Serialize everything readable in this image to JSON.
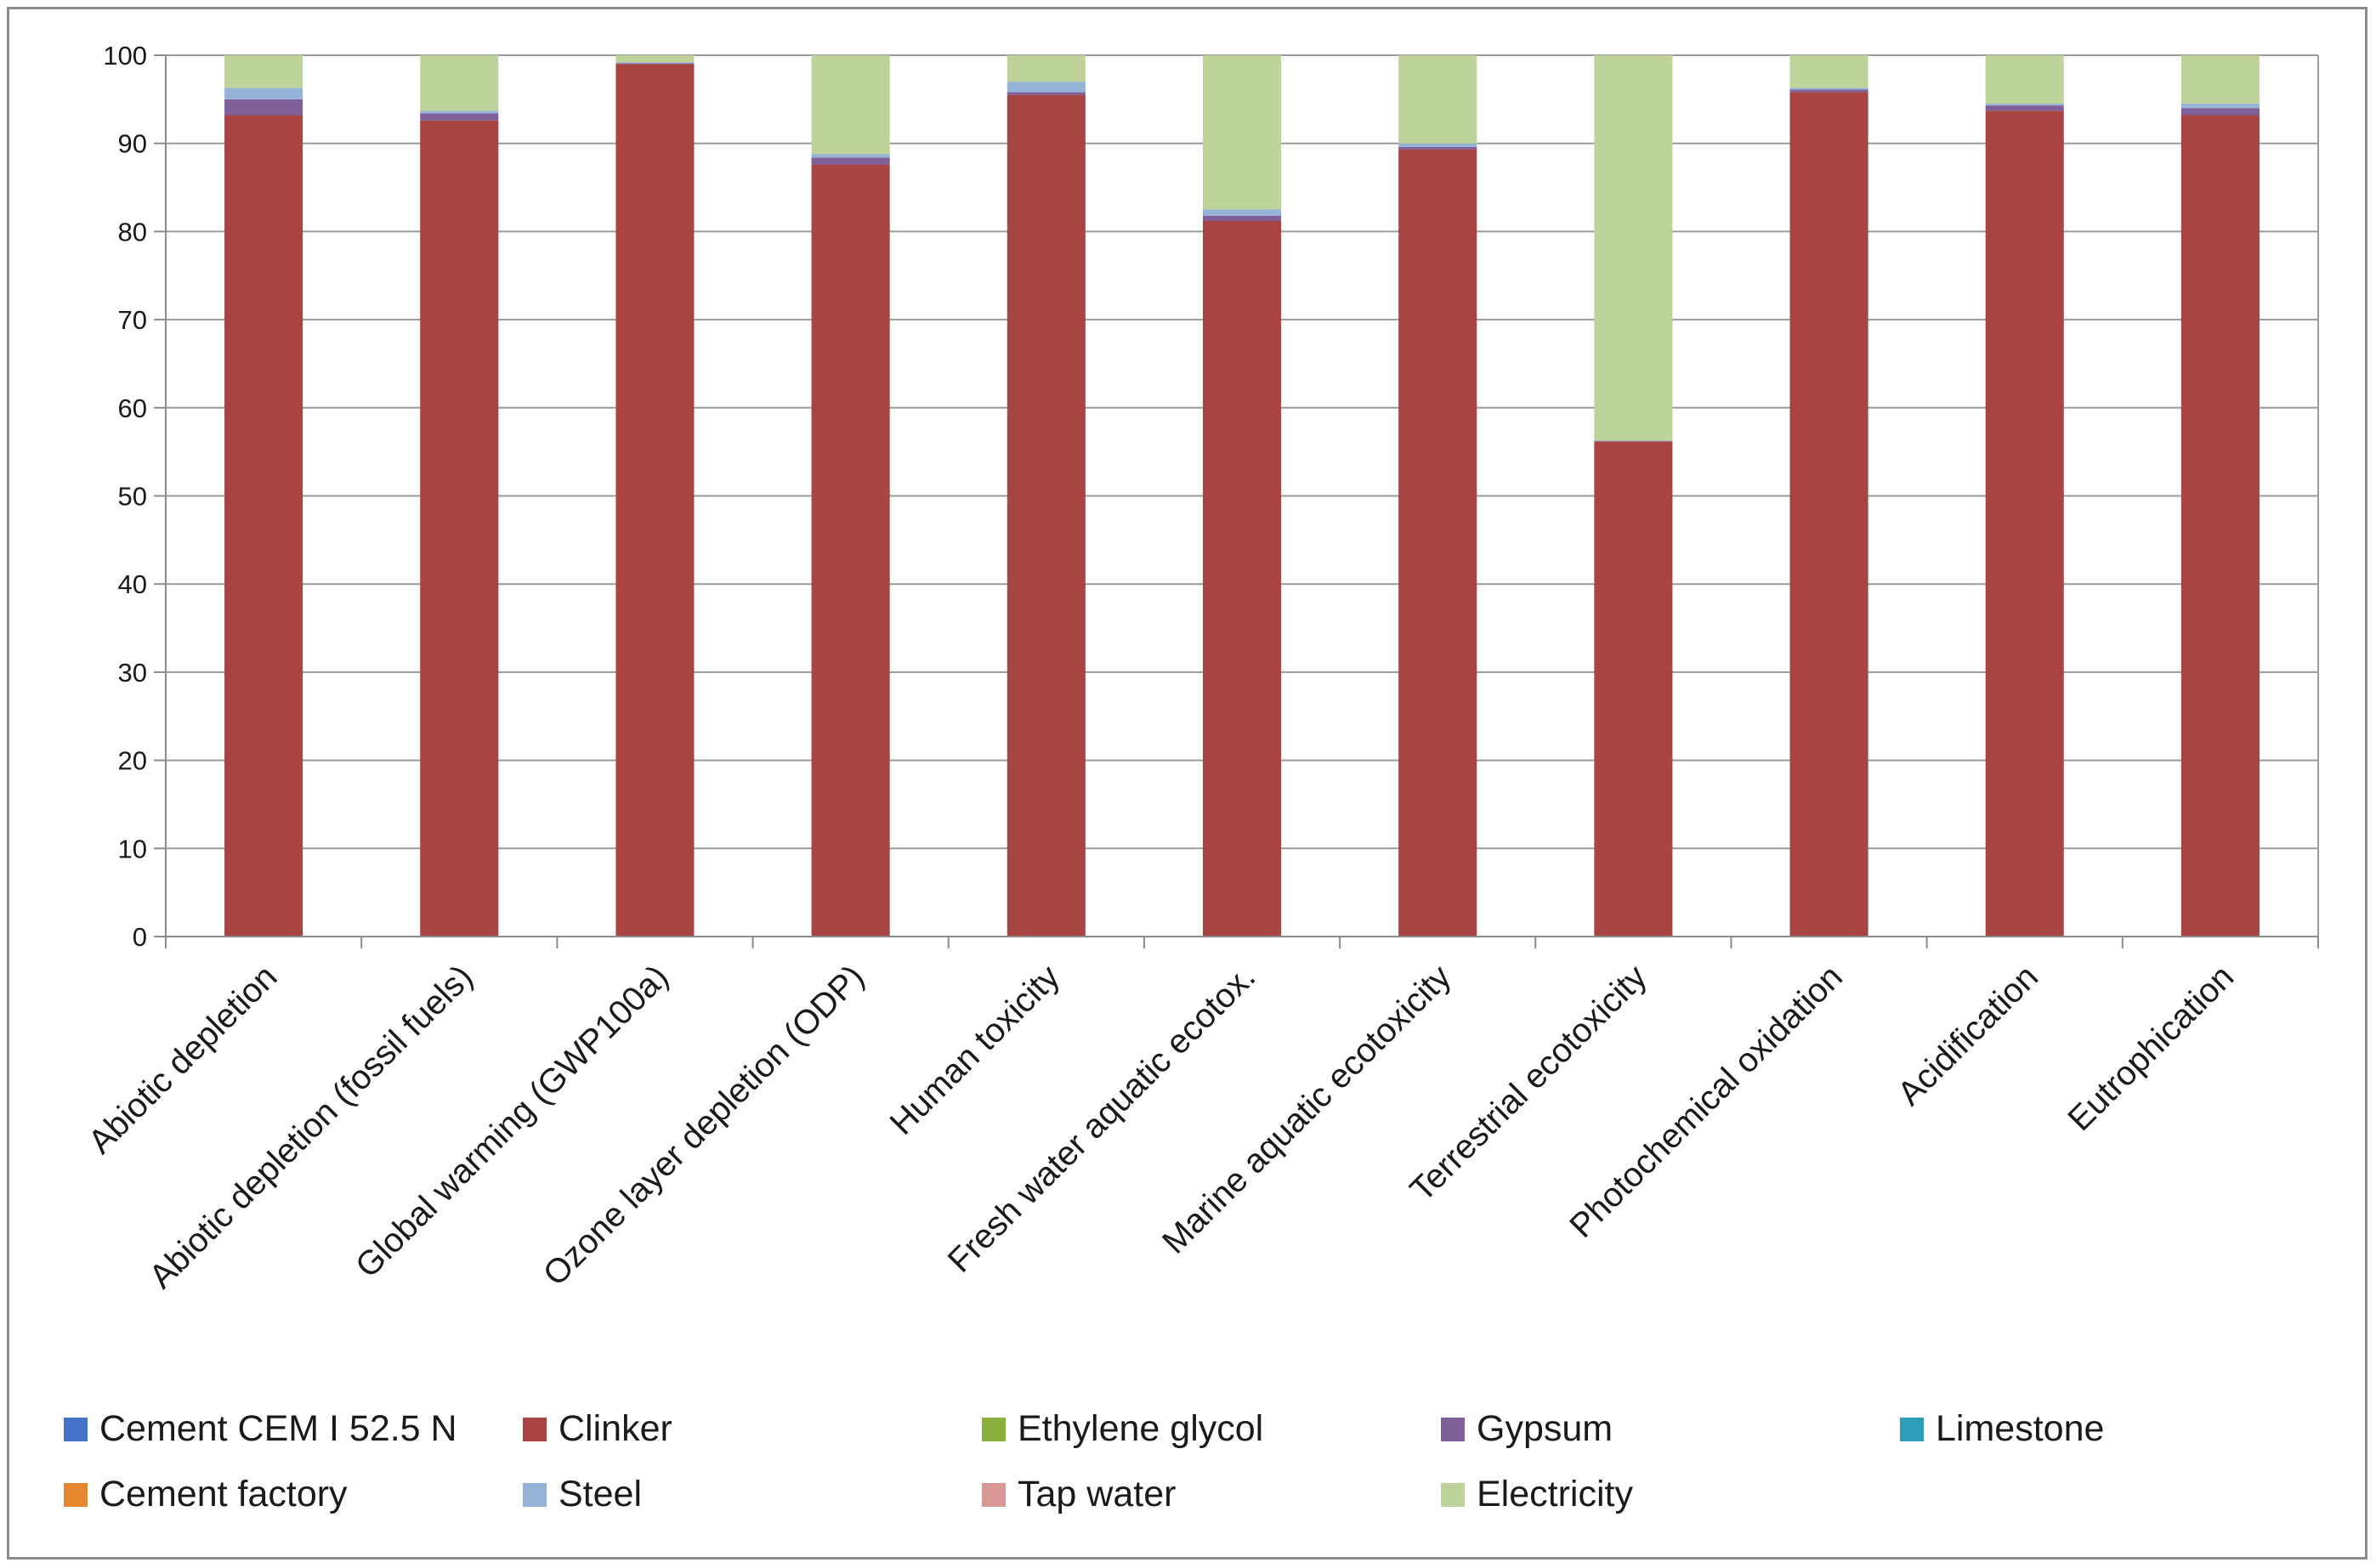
{
  "chart_data": {
    "type": "bar",
    "stacked": true,
    "title": "",
    "xlabel": "",
    "ylabel": "",
    "ylim": [
      0,
      100
    ],
    "yticks": [
      "0",
      "10",
      "20",
      "30",
      "40",
      "50",
      "60",
      "70",
      "80",
      "90",
      "100"
    ],
    "grid": true,
    "legend_position": "bottom",
    "categories": [
      "Abiotic depletion",
      "Abiotic depletion (fossil fuels)",
      "Global warming (GWP100a)",
      "Ozone layer depletion (ODP)",
      "Human toxicity",
      "Fresh water aquatic ecotox.",
      "Marine aquatic ecotoxicity",
      "Terrestrial ecotoxicity",
      "Photochemical oxidation",
      "Acidification",
      "Eutrophication"
    ],
    "series": [
      {
        "name": "Cement CEM I 52.5 N",
        "color": "#4472C4",
        "values": [
          0,
          0,
          0,
          0,
          0,
          0,
          0,
          0,
          0,
          0,
          0
        ]
      },
      {
        "name": "Clinker",
        "color": "#A84442",
        "values": [
          93.2,
          92.6,
          99.0,
          87.6,
          95.5,
          81.2,
          89.3,
          56.2,
          95.8,
          93.7,
          93.2
        ]
      },
      {
        "name": "Ethylene glycol",
        "color": "#8CAF3E",
        "values": [
          0,
          0,
          0,
          0,
          0,
          0,
          0,
          0,
          0,
          0,
          0
        ]
      },
      {
        "name": "Gypsum",
        "color": "#7F6099",
        "values": [
          1.8,
          0.8,
          0.1,
          0.8,
          0.3,
          0.6,
          0.3,
          0,
          0.3,
          0.6,
          0.8
        ]
      },
      {
        "name": "Limestone",
        "color": "#2E9DBA",
        "values": [
          0,
          0,
          0,
          0,
          0,
          0,
          0,
          0,
          0,
          0,
          0
        ]
      },
      {
        "name": "Cement factory",
        "color": "#E6862E",
        "values": [
          0,
          0,
          0,
          0,
          0,
          0,
          0,
          0,
          0,
          0,
          0
        ]
      },
      {
        "name": "Steel",
        "color": "#95B3D7",
        "values": [
          1.3,
          0.3,
          0.1,
          0.4,
          1.2,
          0.7,
          0.4,
          0.1,
          0.2,
          0.2,
          0.5
        ]
      },
      {
        "name": "Tap water",
        "color": "#D99795",
        "values": [
          0,
          0,
          0,
          0,
          0,
          0,
          0,
          0,
          0,
          0,
          0
        ]
      },
      {
        "name": "Electricity",
        "color": "#BDD39A",
        "values": [
          3.7,
          6.3,
          0.8,
          11.2,
          3.0,
          17.5,
          10.0,
          43.7,
          3.7,
          5.5,
          5.5
        ]
      }
    ]
  }
}
